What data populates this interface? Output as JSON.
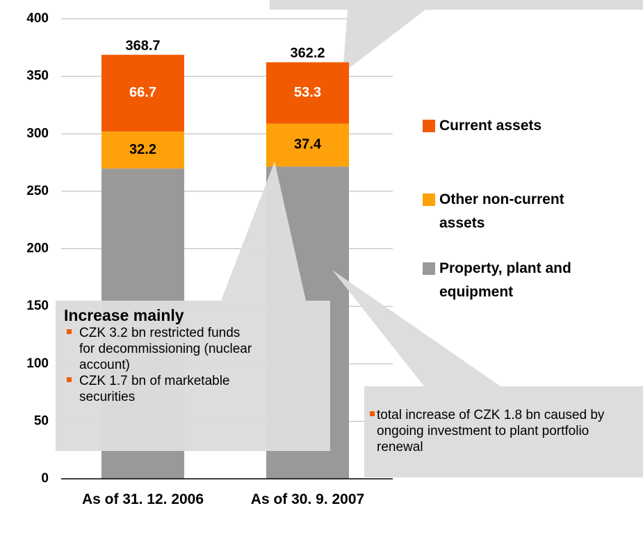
{
  "chart_data": {
    "type": "bar",
    "stacked": true,
    "categories": [
      "As of 31. 12. 2006",
      "As of  30. 9. 2007"
    ],
    "series": [
      {
        "name": "Property, plant and equipment",
        "color": "#999999",
        "label_color": "#ffffff",
        "values": [
          269.8,
          271.5
        ]
      },
      {
        "name": "Other non-current assets",
        "color": "#ffa10a",
        "label_color": "#000000",
        "values": [
          32.2,
          37.4
        ]
      },
      {
        "name": "Current assets",
        "color": "#f25a02",
        "label_color": "#ffffff",
        "values": [
          66.7,
          53.3
        ]
      }
    ],
    "totals": [
      368.7,
      362.2
    ],
    "ylim": [
      0,
      400
    ],
    "yticks": [
      0,
      50,
      100,
      150,
      200,
      250,
      300,
      350,
      400
    ],
    "grid": true,
    "annotations": [
      {
        "title": "Increase mainly",
        "bullets": [
          "CZK 3.2 bn restricted funds for decommissioning (nuclear account)",
          "CZK 1.7 bn of marketable securities"
        ]
      },
      {
        "bullets": [
          "total increase of CZK 1.8 bn caused by ongoing investment to plant portfolio renewal"
        ]
      }
    ]
  }
}
